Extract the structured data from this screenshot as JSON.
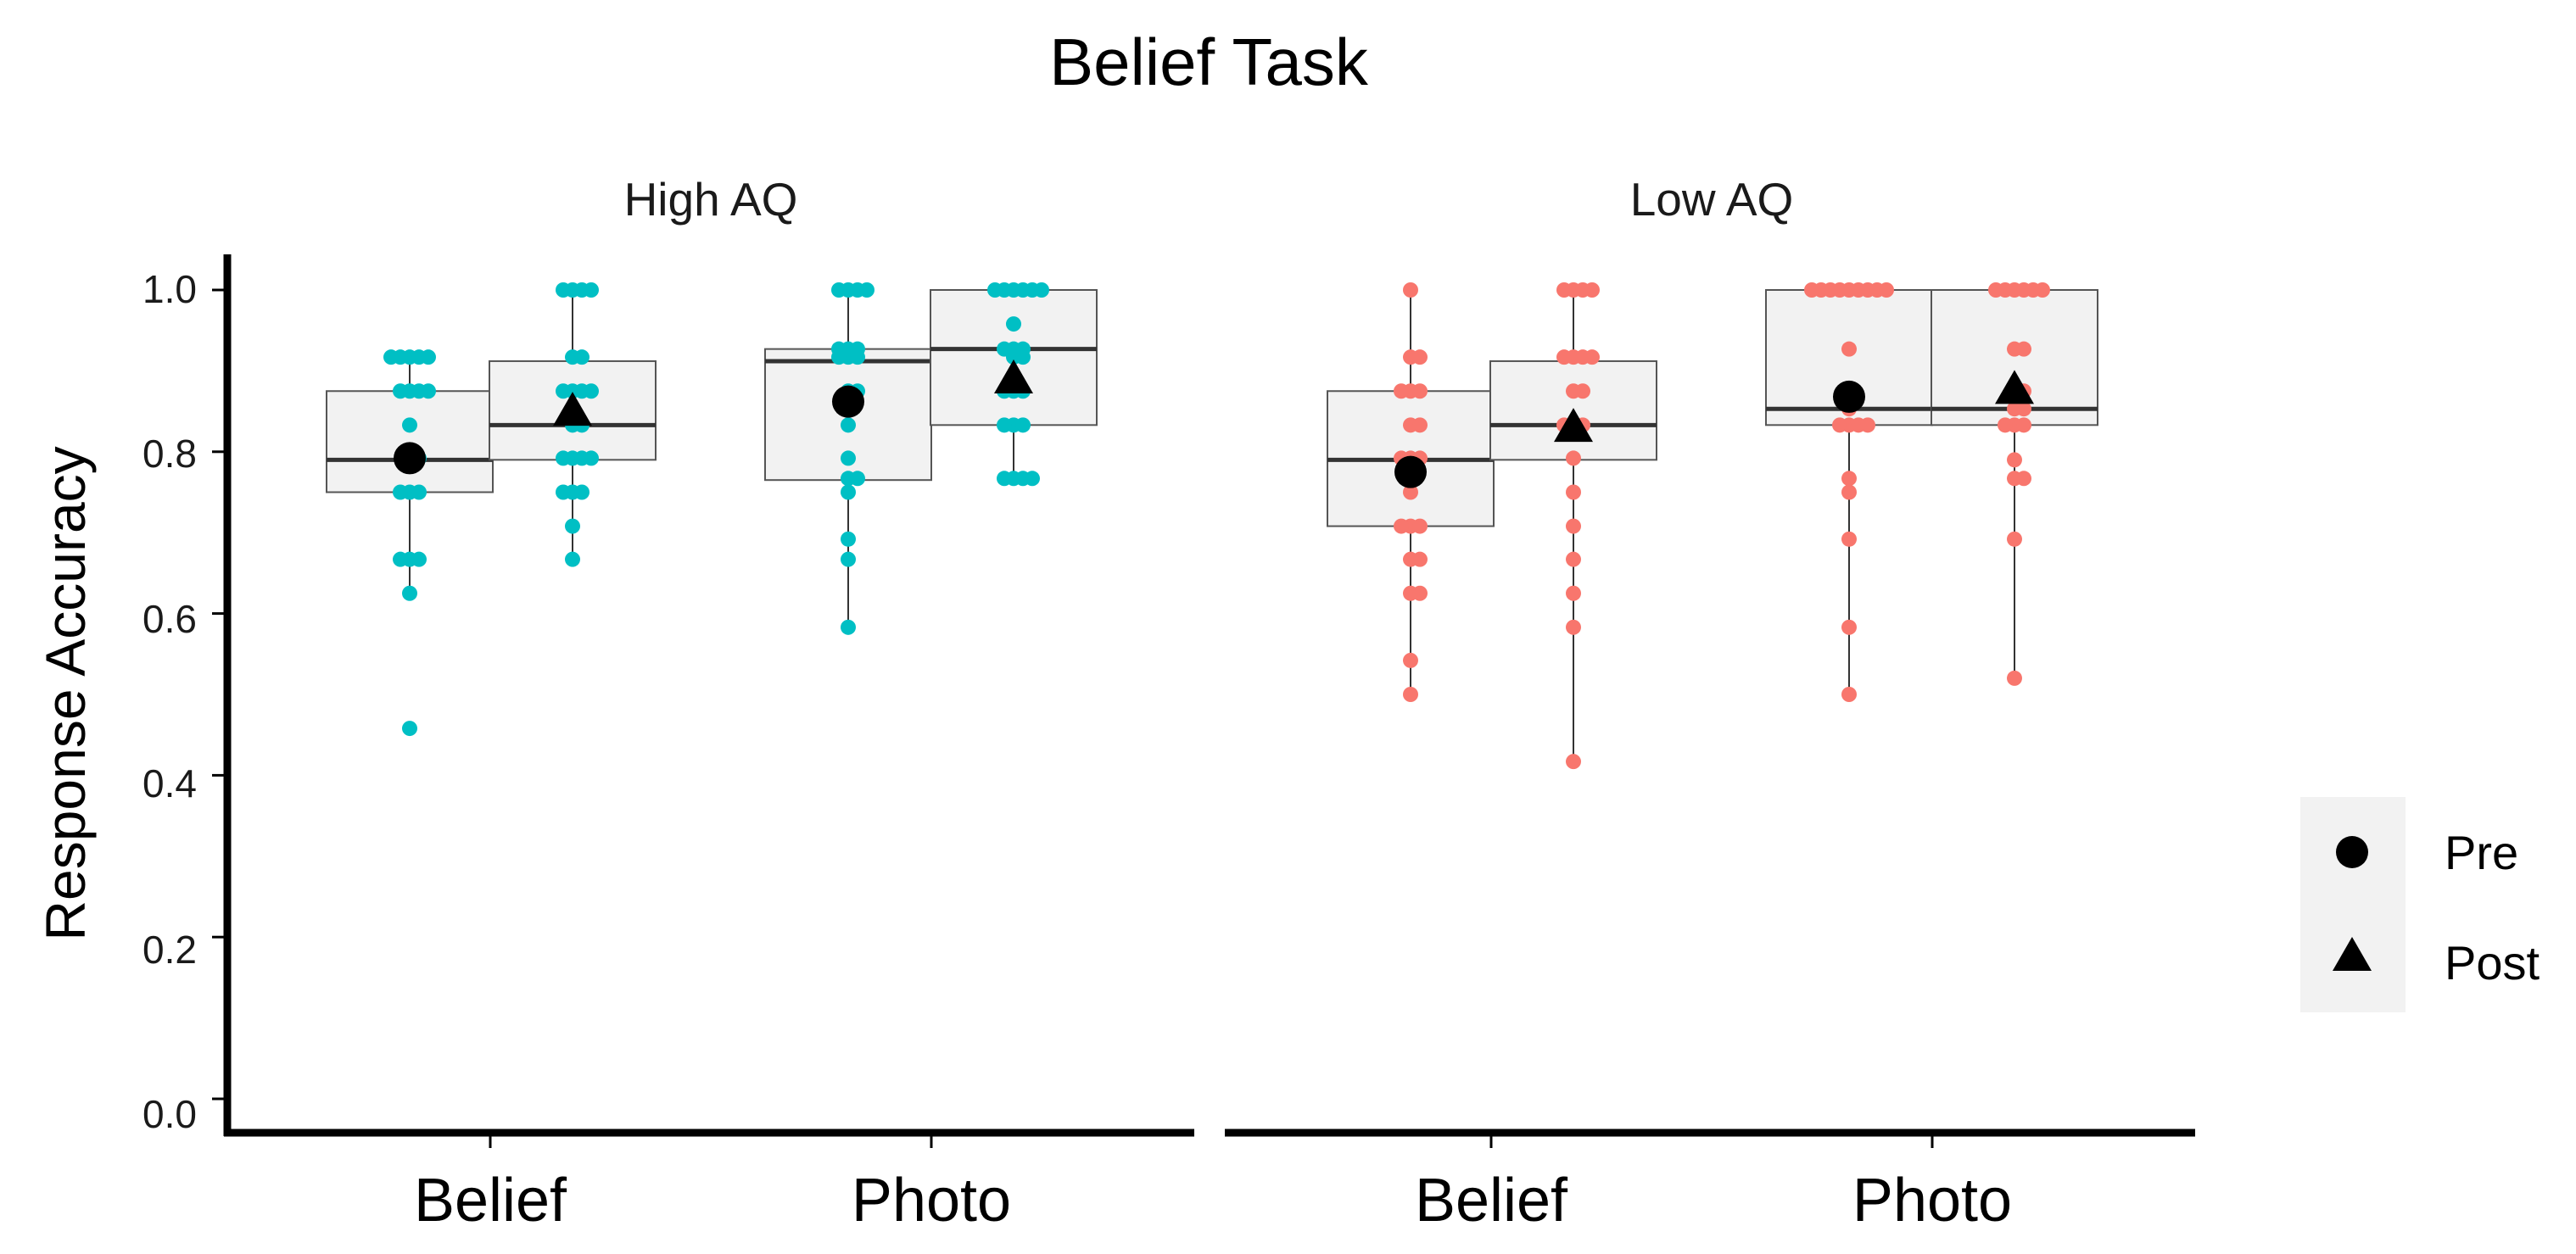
{
  "chart_data": {
    "type": "box",
    "title": "Belief Task",
    "xlabel": "",
    "ylabel": "Response Accuracy",
    "ylim": [
      0,
      1.04
    ],
    "yticks": [
      "0.0",
      "0.2",
      "0.4",
      "0.6",
      "0.8",
      "1.0"
    ],
    "categories": [
      "Belief",
      "Photo"
    ],
    "legend": {
      "position": "right",
      "entries": [
        {
          "name": "Pre",
          "shape": "circle"
        },
        {
          "name": "Post",
          "shape": "triangle"
        }
      ]
    },
    "colors": {
      "High AQ": "#00BFC4",
      "Low AQ": "#F8766D",
      "box_fill": "#F2F2F2",
      "box_line": "#333333",
      "legend_bg": "#F2F2F2"
    },
    "panels": [
      {
        "label": "High AQ",
        "groups": [
          {
            "category": "Belief",
            "time": "Pre",
            "box": {
              "q1": 0.75,
              "median": 0.79,
              "q3": 0.875,
              "low": 0.625,
              "high": 0.917
            },
            "mean": 0.792,
            "points": [
              0.917,
              0.917,
              0.917,
              0.917,
              0.917,
              0.875,
              0.875,
              0.875,
              0.875,
              0.833,
              0.792,
              0.792,
              0.75,
              0.75,
              0.75,
              0.667,
              0.667,
              0.667,
              0.625,
              0.458
            ]
          },
          {
            "category": "Belief",
            "time": "Post",
            "box": {
              "q1": 0.79,
              "median": 0.833,
              "q3": 0.912,
              "low": 0.667,
              "high": 1.0
            },
            "mean": 0.85,
            "points": [
              1.0,
              1.0,
              1.0,
              1.0,
              0.917,
              0.917,
              0.875,
              0.875,
              0.875,
              0.875,
              0.833,
              0.833,
              0.792,
              0.792,
              0.792,
              0.792,
              0.75,
              0.75,
              0.75,
              0.708,
              0.667
            ]
          },
          {
            "category": "Photo",
            "time": "Pre",
            "box": {
              "q1": 0.765,
              "median": 0.912,
              "q3": 0.927,
              "low": 0.583,
              "high": 1.0
            },
            "mean": 0.862,
            "points": [
              1.0,
              1.0,
              1.0,
              1.0,
              0.927,
              0.927,
              0.927,
              0.917,
              0.917,
              0.917,
              0.875,
              0.875,
              0.833,
              0.792,
              0.767,
              0.767,
              0.75,
              0.692,
              0.667,
              0.583
            ]
          },
          {
            "category": "Photo",
            "time": "Post",
            "box": {
              "q1": 0.833,
              "median": 0.927,
              "q3": 1.0,
              "low": 0.767,
              "high": 1.0
            },
            "mean": 0.89,
            "points": [
              1.0,
              1.0,
              1.0,
              1.0,
              1.0,
              1.0,
              0.958,
              0.927,
              0.927,
              0.927,
              0.917,
              0.917,
              0.875,
              0.875,
              0.875,
              0.833,
              0.833,
              0.833,
              0.767,
              0.767,
              0.767,
              0.767
            ]
          }
        ]
      },
      {
        "label": "Low AQ",
        "groups": [
          {
            "category": "Belief",
            "time": "Pre",
            "box": {
              "q1": 0.708,
              "median": 0.79,
              "q3": 0.875,
              "low": 0.5,
              "high": 1.0
            },
            "mean": 0.775,
            "points": [
              1.0,
              0.917,
              0.917,
              0.875,
              0.875,
              0.875,
              0.833,
              0.833,
              0.792,
              0.792,
              0.792,
              0.75,
              0.708,
              0.708,
              0.708,
              0.667,
              0.667,
              0.625,
              0.625,
              0.542,
              0.5
            ]
          },
          {
            "category": "Belief",
            "time": "Post",
            "box": {
              "q1": 0.79,
              "median": 0.833,
              "q3": 0.912,
              "low": 0.417,
              "high": 1.0
            },
            "mean": 0.83,
            "points": [
              1.0,
              1.0,
              1.0,
              1.0,
              0.917,
              0.917,
              0.917,
              0.917,
              0.875,
              0.875,
              0.833,
              0.833,
              0.833,
              0.792,
              0.75,
              0.708,
              0.667,
              0.625,
              0.583,
              0.417
            ]
          },
          {
            "category": "Photo",
            "time": "Pre",
            "box": {
              "q1": 0.833,
              "median": 0.853,
              "q3": 1.0,
              "low": 0.5,
              "high": 1.0
            },
            "mean": 0.868,
            "points": [
              1.0,
              1.0,
              1.0,
              1.0,
              1.0,
              1.0,
              1.0,
              1.0,
              1.0,
              0.927,
              0.853,
              0.833,
              0.833,
              0.833,
              0.833,
              0.767,
              0.75,
              0.692,
              0.583,
              0.5
            ]
          },
          {
            "category": "Photo",
            "time": "Post",
            "box": {
              "q1": 0.833,
              "median": 0.853,
              "q3": 1.0,
              "low": 0.52,
              "high": 1.0
            },
            "mean": 0.877,
            "points": [
              1.0,
              1.0,
              1.0,
              1.0,
              1.0,
              1.0,
              0.927,
              0.927,
              0.875,
              0.875,
              0.853,
              0.853,
              0.833,
              0.833,
              0.833,
              0.79,
              0.767,
              0.767,
              0.692,
              0.52
            ]
          }
        ]
      }
    ]
  }
}
